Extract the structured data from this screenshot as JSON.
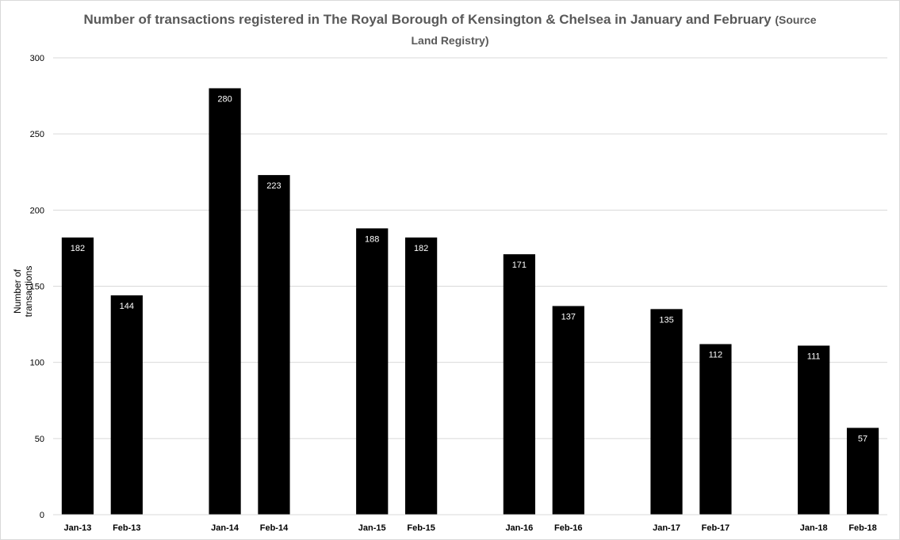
{
  "chart_data": {
    "type": "bar",
    "title": "Number of transactions registered in The Royal Borough of Kensington & Chelsea in January and February",
    "title_suffix": "(Source Land Registry)",
    "ylabel": "Number of transactions",
    "xlabel": "",
    "ylim": [
      0,
      300
    ],
    "yticks": [
      0,
      50,
      100,
      150,
      200,
      250,
      300
    ],
    "grid": true,
    "bar_color": "#000000",
    "data_label_color": "#ffffff",
    "categories": [
      "Jan-13",
      "Feb-13",
      "Jan-14",
      "Feb-14",
      "Jan-15",
      "Feb-15",
      "Jan-16",
      "Feb-16",
      "Jan-17",
      "Feb-17",
      "Jan-18",
      "Feb-18"
    ],
    "values": [
      182,
      144,
      280,
      223,
      188,
      182,
      171,
      137,
      135,
      112,
      111,
      57
    ]
  }
}
